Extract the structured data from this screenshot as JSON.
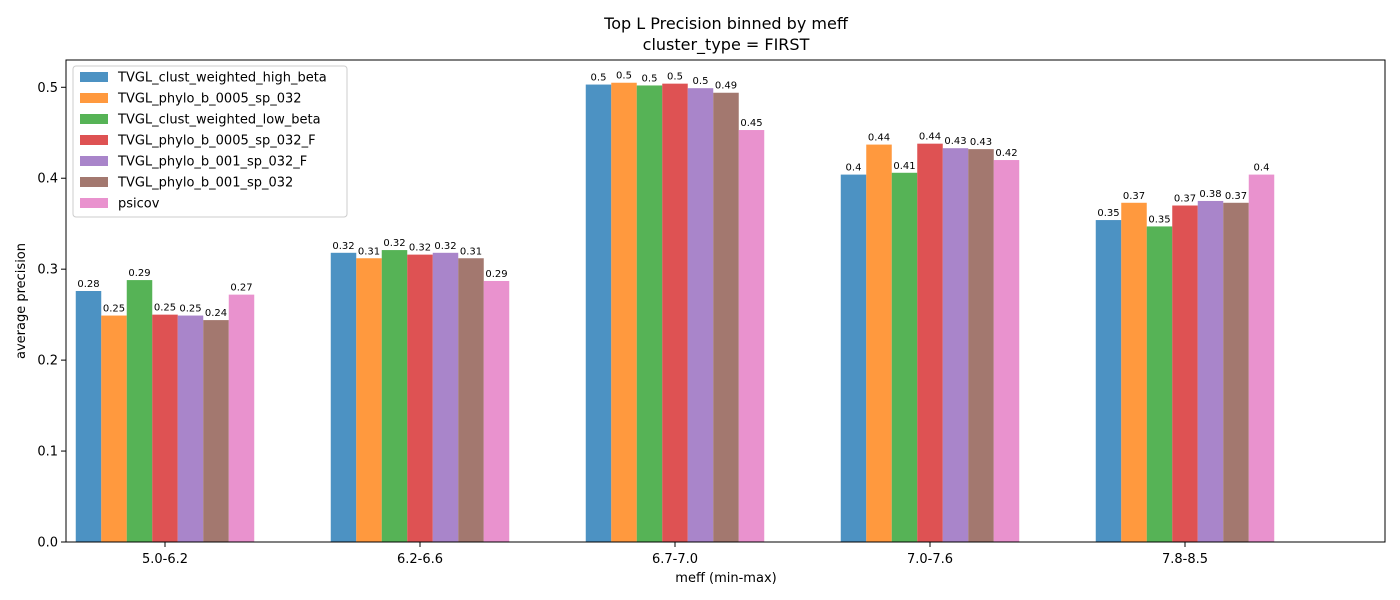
{
  "chart_data": {
    "type": "bar",
    "title": "Top L Precision binned by meff",
    "subtitle": "cluster_type = FIRST",
    "xlabel": "meff (min-max)",
    "ylabel": "average precision",
    "ylim": [
      0,
      0.53
    ],
    "yticks": [
      "0.0",
      "0.1",
      "0.2",
      "0.3",
      "0.4",
      "0.5"
    ],
    "legend_position": "top-left",
    "grid": false,
    "categories": [
      "5.0-6.2",
      "6.2-6.6",
      "6.7-7.0",
      "7.0-7.6",
      "7.8-8.5"
    ],
    "series": [
      {
        "name": "TVGL_clust_weighted_high_beta",
        "color": "#1f77b4",
        "values": [
          0.276,
          0.318,
          0.503,
          0.404,
          0.354
        ],
        "labels": [
          "0.28",
          "0.32",
          "0.5",
          "0.4",
          "0.35"
        ]
      },
      {
        "name": "TVGL_phylo_b_0005_sp_032",
        "color": "#ff7f0e",
        "values": [
          0.249,
          0.312,
          0.505,
          0.437,
          0.373
        ],
        "labels": [
          "0.25",
          "0.31",
          "0.5",
          "0.44",
          "0.37"
        ]
      },
      {
        "name": "TVGL_clust_weighted_low_beta",
        "color": "#2ca02c",
        "values": [
          0.288,
          0.321,
          0.502,
          0.406,
          0.347
        ],
        "labels": [
          "0.29",
          "0.32",
          "0.5",
          "0.41",
          "0.35"
        ]
      },
      {
        "name": "TVGL_phylo_b_0005_sp_032_F",
        "color": "#d62728",
        "values": [
          0.25,
          0.316,
          0.504,
          0.438,
          0.37
        ],
        "labels": [
          "0.25",
          "0.32",
          "0.5",
          "0.44",
          "0.37"
        ]
      },
      {
        "name": "TVGL_phylo_b_001_sp_032_F",
        "color": "#9467bd",
        "values": [
          0.249,
          0.318,
          0.499,
          0.433,
          0.375
        ],
        "labels": [
          "0.25",
          "0.32",
          "0.5",
          "0.43",
          "0.38"
        ]
      },
      {
        "name": "TVGL_phylo_b_001_sp_032",
        "color": "#8c564b",
        "values": [
          0.244,
          0.312,
          0.494,
          0.432,
          0.373
        ],
        "labels": [
          "0.24",
          "0.31",
          "0.49",
          "0.43",
          "0.37"
        ]
      },
      {
        "name": "psicov",
        "color": "#e377c2",
        "values": [
          0.272,
          0.287,
          0.453,
          0.42,
          0.404
        ],
        "labels": [
          "0.27",
          "0.29",
          "0.45",
          "0.42",
          "0.4"
        ]
      }
    ]
  }
}
